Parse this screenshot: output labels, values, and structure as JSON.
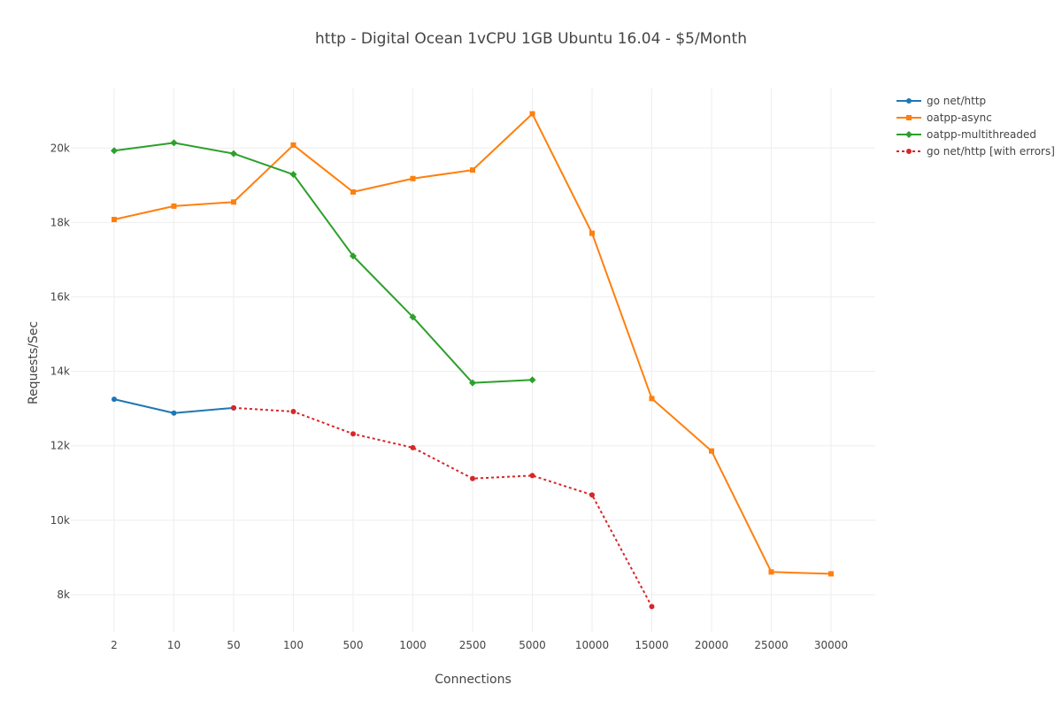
{
  "chart_data": {
    "type": "line",
    "title": "http - Digital Ocean 1vCPU 1GB Ubuntu 16.04 - $5/Month",
    "xlabel": "Connections",
    "ylabel": "Requests/Sec",
    "categories": [
      "2",
      "10",
      "50",
      "100",
      "500",
      "1000",
      "2500",
      "5000",
      "10000",
      "15000",
      "20000",
      "25000",
      "30000"
    ],
    "ylim": [
      7000,
      21600
    ],
    "yticks": [
      8000,
      10000,
      12000,
      14000,
      16000,
      18000,
      20000
    ],
    "ytick_labels": [
      "8k",
      "10k",
      "12k",
      "14k",
      "16k",
      "18k",
      "20k"
    ],
    "grid": true,
    "legend_position": "top-right",
    "series": [
      {
        "name": "go net/http",
        "color": "#1f77b4",
        "dash": "solid",
        "marker": "circle",
        "values": [
          13250,
          12880,
          13020,
          null,
          null,
          null,
          null,
          null,
          null,
          null,
          null,
          null,
          null
        ]
      },
      {
        "name": "oatpp-async",
        "color": "#ff7f0e",
        "dash": "solid",
        "marker": "square",
        "values": [
          18080,
          18440,
          18550,
          20080,
          18820,
          19180,
          19410,
          20920,
          17710,
          13270,
          11860,
          8610,
          8560
        ]
      },
      {
        "name": "oatpp-multithreaded",
        "color": "#2ca02c",
        "dash": "solid",
        "marker": "diamond",
        "values": [
          19930,
          20140,
          19850,
          19290,
          17100,
          15460,
          13690,
          13770,
          null,
          null,
          null,
          null,
          null
        ]
      },
      {
        "name": "go net/http [with errors]",
        "color": "#d62728",
        "dash": "dot",
        "marker": "circle",
        "values": [
          null,
          null,
          13020,
          12920,
          12320,
          11950,
          11120,
          11200,
          10680,
          7680,
          null,
          null,
          null
        ]
      }
    ]
  }
}
